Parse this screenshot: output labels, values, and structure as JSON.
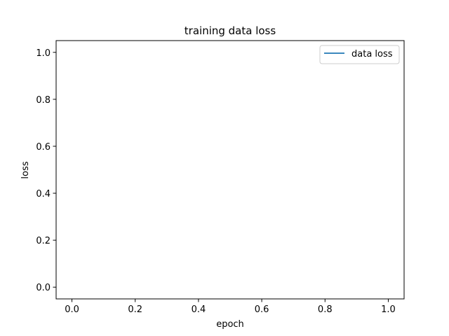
{
  "chart_data": {
    "type": "line",
    "title": "training data loss",
    "xlabel": "epoch",
    "ylabel": "loss",
    "xlim": [
      -0.05,
      1.05
    ],
    "ylim": [
      -0.05,
      1.05
    ],
    "xticks": [
      "0.0",
      "0.2",
      "0.4",
      "0.6",
      "0.8",
      "1.0"
    ],
    "yticks": [
      "0.0",
      "0.2",
      "0.4",
      "0.6",
      "0.8",
      "1.0"
    ],
    "grid": false,
    "legend_position": "top-right",
    "series": [
      {
        "name": "data loss",
        "color": "#1f77b4",
        "x": [],
        "y": []
      }
    ]
  }
}
